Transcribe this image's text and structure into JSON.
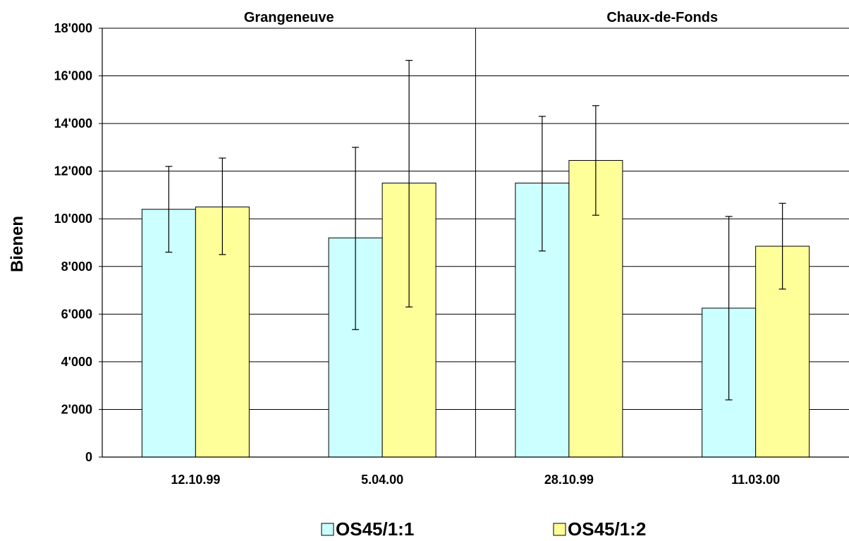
{
  "chart_data": {
    "type": "bar",
    "ylabel": "Bienen",
    "ylim": [
      0,
      18000
    ],
    "ytick_step": 2000,
    "ytick_labels": [
      "0",
      "2'000",
      "4'000",
      "6'000",
      "8'000",
      "10'000",
      "12'000",
      "14'000",
      "16'000",
      "18'000"
    ],
    "grid": true,
    "legend_position": "bottom",
    "groups": [
      "Grangeneuve",
      "Chaux-de-Fonds"
    ],
    "categories": [
      "12.10.99",
      "5.04.00",
      "28.10.99",
      "11.03.00"
    ],
    "category_group": [
      0,
      0,
      1,
      1
    ],
    "series": [
      {
        "name": "OS45/1:1",
        "color": "#ccffff",
        "values": [
          10400,
          9200,
          11500,
          6250
        ],
        "err_low": [
          8600,
          5350,
          8650,
          2400
        ],
        "err_high": [
          12200,
          13000,
          14300,
          10100
        ]
      },
      {
        "name": "OS45/1:2",
        "color": "#ffff99",
        "values": [
          10500,
          11500,
          12450,
          8850
        ],
        "err_low": [
          8500,
          6300,
          10150,
          7050
        ],
        "err_high": [
          12550,
          16650,
          14750,
          10650
        ]
      }
    ]
  }
}
